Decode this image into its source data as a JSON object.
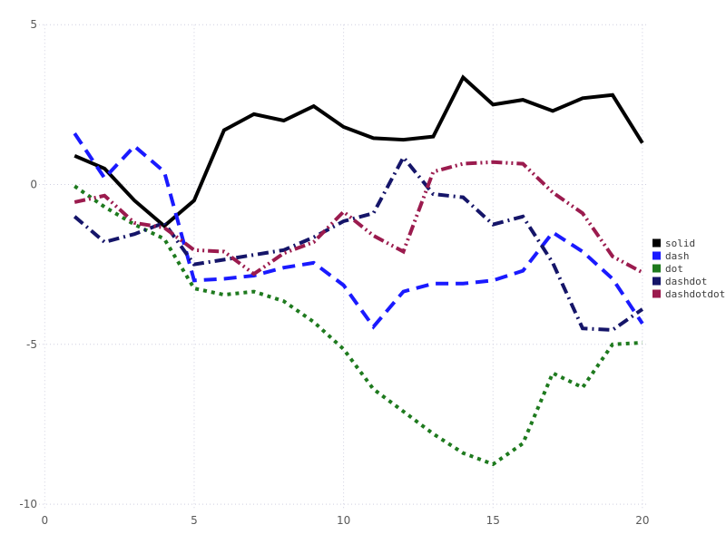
{
  "figure": {
    "background": "#ffffff",
    "grid_color": "#cfcfe0",
    "tick_label_color": "#595959",
    "legend_text_color": "#3d3d3d"
  },
  "chart_data": {
    "type": "line",
    "title": "",
    "xlabel": "",
    "ylabel": "",
    "x_ticks": [
      0,
      5,
      10,
      15,
      20
    ],
    "y_ticks": [
      5,
      0,
      -5,
      -10
    ],
    "xlim": [
      0,
      20.6
    ],
    "ylim": [
      -10,
      5
    ],
    "grid": true,
    "legend_position": "right-outside",
    "x": [
      1,
      2,
      3,
      4,
      5,
      6,
      7,
      8,
      9,
      10,
      11,
      12,
      13,
      14,
      15,
      16,
      17,
      18,
      19,
      20
    ],
    "series": [
      {
        "name": "solid",
        "style": "solid",
        "color": "#000000",
        "values": [
          0.9,
          0.5,
          -0.5,
          -1.3,
          -0.5,
          1.7,
          2.2,
          2.0,
          2.45,
          1.8,
          1.45,
          1.4,
          1.5,
          3.35,
          2.5,
          2.65,
          2.3,
          2.7,
          2.8,
          1.3
        ]
      },
      {
        "name": "dash",
        "style": "dash",
        "color": "#1a1aff",
        "values": [
          1.6,
          0.2,
          1.2,
          0.4,
          -3.0,
          -2.95,
          -2.85,
          -2.6,
          -2.45,
          -3.15,
          -4.45,
          -3.35,
          -3.1,
          -3.1,
          -3.0,
          -2.7,
          -1.5,
          -2.1,
          -2.95,
          -4.35
        ]
      },
      {
        "name": "dot",
        "style": "dot",
        "color": "#1e7a1e",
        "values": [
          -0.05,
          -0.7,
          -1.25,
          -1.7,
          -3.25,
          -3.45,
          -3.35,
          -3.65,
          -4.3,
          -5.15,
          -6.4,
          -7.1,
          -7.8,
          -8.4,
          -8.75,
          -8.1,
          -5.9,
          -6.35,
          -5.0,
          -4.95
        ]
      },
      {
        "name": "dashdot",
        "style": "dashdot",
        "color": "#151569",
        "values": [
          -1.0,
          -1.8,
          -1.55,
          -1.2,
          -2.5,
          -2.35,
          -2.2,
          -2.05,
          -1.65,
          -1.15,
          -0.9,
          0.85,
          -0.3,
          -0.4,
          -1.25,
          -1.0,
          -2.45,
          -4.5,
          -4.55,
          -3.9
        ]
      },
      {
        "name": "dashdotdot",
        "style": "dashdotdot",
        "color": "#9b1b4e",
        "values": [
          -0.55,
          -0.35,
          -1.2,
          -1.35,
          -2.05,
          -2.1,
          -2.8,
          -2.15,
          -1.8,
          -0.85,
          -1.6,
          -2.1,
          0.4,
          0.65,
          0.7,
          0.65,
          -0.25,
          -0.9,
          -2.25,
          -2.75
        ]
      }
    ],
    "legend_entries": [
      "solid",
      "dash",
      "dot",
      "dashdot",
      "dashdotdot"
    ]
  }
}
